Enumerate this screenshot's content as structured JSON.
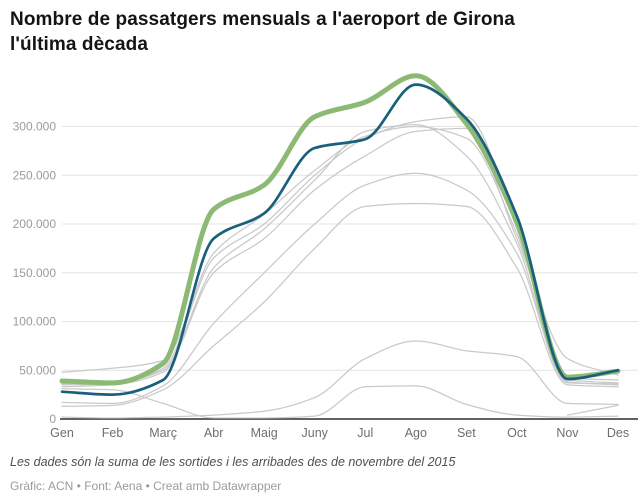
{
  "header": {
    "title": "Nombre de passatgers mensuals a l'aeroport de Girona l'última dècada",
    "title_lines": [
      "Nombre de passatgers mensuals a l'aeroport de Girona",
      "l'última dècada"
    ]
  },
  "footer": {
    "notes": "Les dades són la suma de les sortides i les arribades des de novembre del 2015",
    "byline": "Gràfic: ACN • Font: Aena • Creat amb Datawrapper"
  },
  "chart_data": {
    "type": "line",
    "title": "Nombre de passatgers mensuals a l'aeroport de Girona l'última dècada",
    "xlabel": "",
    "ylabel": "",
    "ylim": [
      0,
      360000
    ],
    "grid": "horizontal",
    "legend": "none",
    "categories": [
      "Gen",
      "Feb",
      "Març",
      "Abr",
      "Maig",
      "Juny",
      "Jul",
      "Ago",
      "Set",
      "Oct",
      "Nov",
      "Des"
    ],
    "y_ticks": {
      "values": [
        0,
        50000,
        100000,
        150000,
        200000,
        250000,
        300000
      ],
      "labels": [
        "0",
        "50.000",
        "100.000",
        "150.000",
        "200.000",
        "250.000",
        "300.000"
      ]
    },
    "colors": {
      "highlight_green": "#8cba74",
      "highlight_blue": "#1a607d",
      "context_gray": "#c9c9c9",
      "axis_line": "#2e2e2e",
      "gridline": "#e4e4e4"
    },
    "series": [
      {
        "name": "year-gray-1",
        "color": "#c9c9c9",
        "width": 1.25,
        "values": [
          33000,
          35000,
          48000,
          150000,
          185000,
          235000,
          270000,
          295000,
          298000,
          185000,
          62000,
          45000
        ]
      },
      {
        "name": "year-gray-2",
        "color": "#c9c9c9",
        "width": 1.25,
        "values": [
          35000,
          36000,
          52000,
          165000,
          200000,
          250000,
          288000,
          305000,
          310000,
          195000,
          40000,
          37000
        ]
      },
      {
        "name": "year-gray-3",
        "color": "#c9c9c9",
        "width": 1.25,
        "values": [
          48000,
          52000,
          60000,
          170000,
          210000,
          255000,
          290000,
          300000,
          288000,
          190000,
          42000,
          40000
        ]
      },
      {
        "name": "year-gray-4",
        "color": "#c9c9c9",
        "width": 1.25,
        "values": [
          36000,
          37000,
          50000,
          155000,
          195000,
          245000,
          295000,
          302000,
          270000,
          180000,
          38000,
          35000
        ]
      },
      {
        "name": "year-gray-covid-drop",
        "color": "#c9c9c9",
        "width": 1.25,
        "values": [
          31000,
          30000,
          16000,
          1000,
          1000,
          3000,
          33000,
          34000,
          15000,
          4000,
          2000,
          3000
        ]
      },
      {
        "name": "year-gray-low-hump",
        "color": "#c9c9c9",
        "width": 1.25,
        "values": [
          2000,
          1000,
          2000,
          4000,
          8000,
          22000,
          62000,
          80000,
          70000,
          64000,
          16000,
          15000
        ]
      },
      {
        "name": "year-gray-flat-220",
        "color": "#c9c9c9",
        "width": 1.25,
        "values": [
          13000,
          14000,
          30000,
          75000,
          120000,
          175000,
          218000,
          221000,
          218000,
          155000,
          35000,
          33000
        ]
      },
      {
        "name": "year-gray-8",
        "color": "#c9c9c9",
        "width": 1.25,
        "values": [
          17000,
          16000,
          34000,
          98000,
          150000,
          200000,
          240000,
          252000,
          235000,
          170000,
          37000,
          36000
        ]
      },
      {
        "name": "year-gray-partial-stub",
        "color": "#c9c9c9",
        "width": 1.25,
        "values": [
          null,
          null,
          null,
          null,
          null,
          null,
          null,
          null,
          null,
          null,
          4000,
          14000
        ]
      },
      {
        "name": "year-highlight-green",
        "color": "#8cba74",
        "width": 5,
        "values": [
          39000,
          37000,
          57000,
          215000,
          240000,
          310000,
          325000,
          352000,
          303000,
          202000,
          43000,
          49000
        ]
      },
      {
        "name": "year-highlight-blue",
        "color": "#1a607d",
        "width": 2.7,
        "values": [
          28000,
          25000,
          40000,
          185000,
          211000,
          278000,
          287000,
          343000,
          308000,
          208000,
          41000,
          50000
        ]
      }
    ]
  }
}
